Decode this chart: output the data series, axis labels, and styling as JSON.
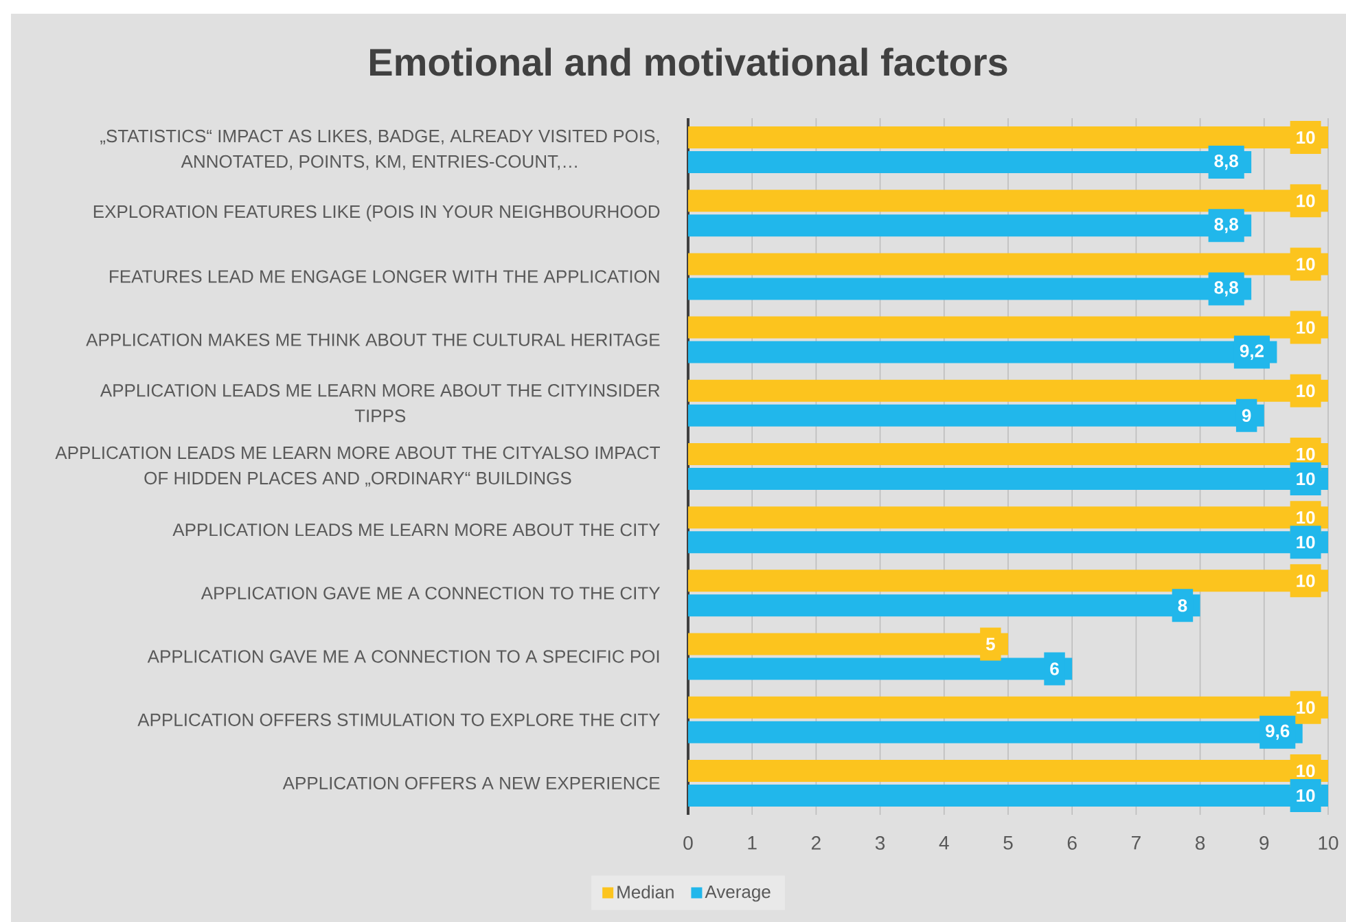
{
  "chart_data": {
    "type": "bar",
    "orientation": "horizontal",
    "title": "Emotional and motivational factors",
    "categories": [
      "„STATISTICS“ IMPACT AS LIKES, BADGE, ALREADY VISITED POIS, ANNOTATED, POINTS, KM, ENTRIES-COUNT,…",
      "EXPLORATION FEATURES LIKE (POIS IN YOUR NEIGHBOURHOOD",
      "FEATURES LEAD ME ENGAGE LONGER WITH THE APPLICATION",
      "APPLICATION MAKES ME THINK ABOUT THE CULTURAL HERITAGE",
      "APPLICATION LEADS ME LEARN MORE ABOUT THE CITYINSIDER TIPPS",
      "APPLICATION LEADS ME LEARN MORE ABOUT THE CITYALSO IMPACT OF HIDDEN PLACES AND „ORDINARY“ BUILDINGS",
      "APPLICATION LEADS ME LEARN MORE ABOUT THE CITY",
      "APPLICATION GAVE ME A CONNECTION TO THE CITY",
      "APPLICATION GAVE ME A CONNECTION TO A SPECIFIC POI",
      "APPLICATION OFFERS STIMULATION TO EXPLORE THE CITY",
      "APPLICATION OFFERS A NEW EXPERIENCE"
    ],
    "series": [
      {
        "name": "Median",
        "color": "#FCC41E",
        "values": [
          10,
          10,
          10,
          10,
          10,
          10,
          10,
          10,
          5,
          10,
          10
        ],
        "value_labels": [
          "10",
          "10",
          "10",
          "10",
          "10",
          "10",
          "10",
          "10",
          "5",
          "10",
          "10"
        ]
      },
      {
        "name": "Average",
        "color": "#21B7EB",
        "values": [
          8.8,
          8.8,
          8.8,
          9.2,
          9,
          10,
          10,
          8,
          6,
          9.6,
          10
        ],
        "value_labels": [
          "8,8",
          "8,8",
          "8,8",
          "9,2",
          "9",
          "10",
          "10",
          "8",
          "6",
          "9,6",
          "10"
        ]
      }
    ],
    "xlim": [
      0,
      10
    ],
    "xticks": [
      0,
      1,
      2,
      3,
      4,
      5,
      6,
      7,
      8,
      9,
      10
    ],
    "grid": "x",
    "legend": "bottom"
  }
}
